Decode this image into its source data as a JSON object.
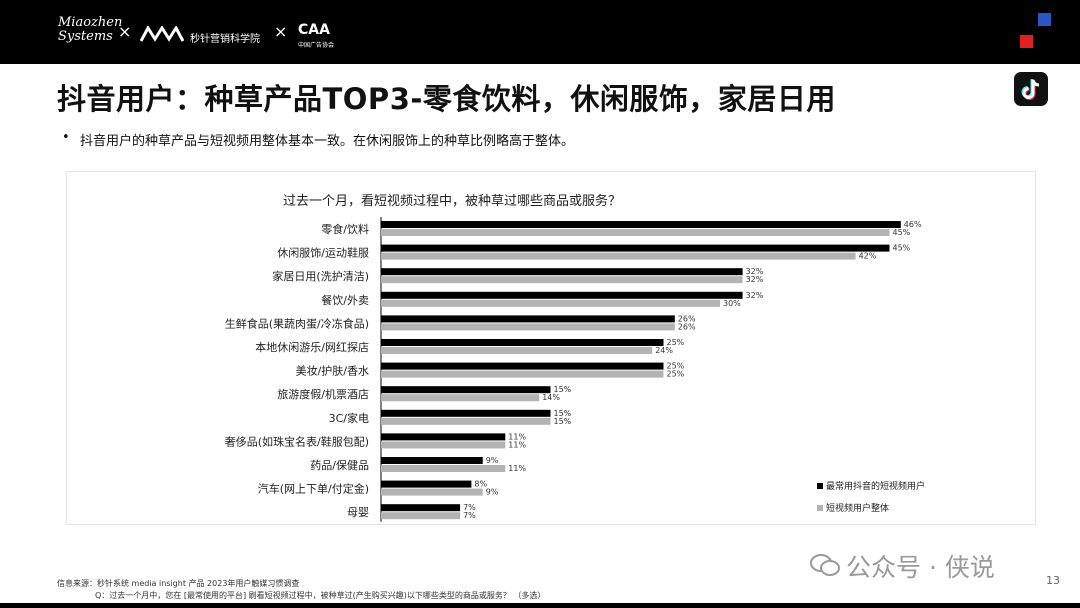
{
  "header": {
    "logo_miaozhen_line1": "Miaozhen",
    "logo_miaozhen_line2": "Systems",
    "separator": "×",
    "logo_academy": "秒针营销科学院",
    "logo_cma": "CAA",
    "logo_cma_sub": "中国广告协会"
  },
  "slide": {
    "title": "抖音用户：种草产品TOP3-零食饮料，休闲服饰，家居日用",
    "bullet": "•",
    "subtitle": "抖音用户的种草产品与短视频用整体基本一致。在休闲服饰上的种草比例略高于整体。"
  },
  "chart_data": {
    "type": "bar",
    "orientation": "horizontal",
    "title": "过去一个月，看短视频过程中，被种草过哪些商品或服务？",
    "categories": [
      "零食/饮料",
      "休闲服饰/运动鞋服",
      "家居日用(洗护清洁)",
      "餐饮/外卖",
      "生鲜食品(果蔬肉蛋/冷冻食品)",
      "本地休闲游乐/网红探店",
      "美妆/护肤/香水",
      "旅游度假/机票酒店",
      "3C/家电",
      "奢侈品(如珠宝名表/鞋服包配)",
      "药品/保健品",
      "汽车(网上下单/付定金)",
      "母婴"
    ],
    "series": [
      {
        "name": "最常用抖音的短视频用户",
        "color": "#000000",
        "values": [
          46,
          45,
          32,
          32,
          26,
          25,
          25,
          15,
          15,
          11,
          9,
          8,
          7
        ]
      },
      {
        "name": "短视频用户整体",
        "color": "#b3b3b3",
        "values": [
          45,
          42,
          32,
          30,
          26,
          24,
          25,
          14,
          15,
          11,
          11,
          9,
          7
        ]
      }
    ],
    "value_suffix": "%",
    "legend_position": "bottom-right",
    "grid": false
  },
  "footer": {
    "watermark": "公众号 · 侠说",
    "page_number": "13",
    "source": "信息来源：秒针系统 media insight 产品 2023年用户触媒习惯调查",
    "question_note": "Q：过去一个月中，您在 [最常使用的平台] 刷看短视频过程中，被种草过(产生购买兴趣)以下哪些类型的商品或服务？ （多选）"
  }
}
